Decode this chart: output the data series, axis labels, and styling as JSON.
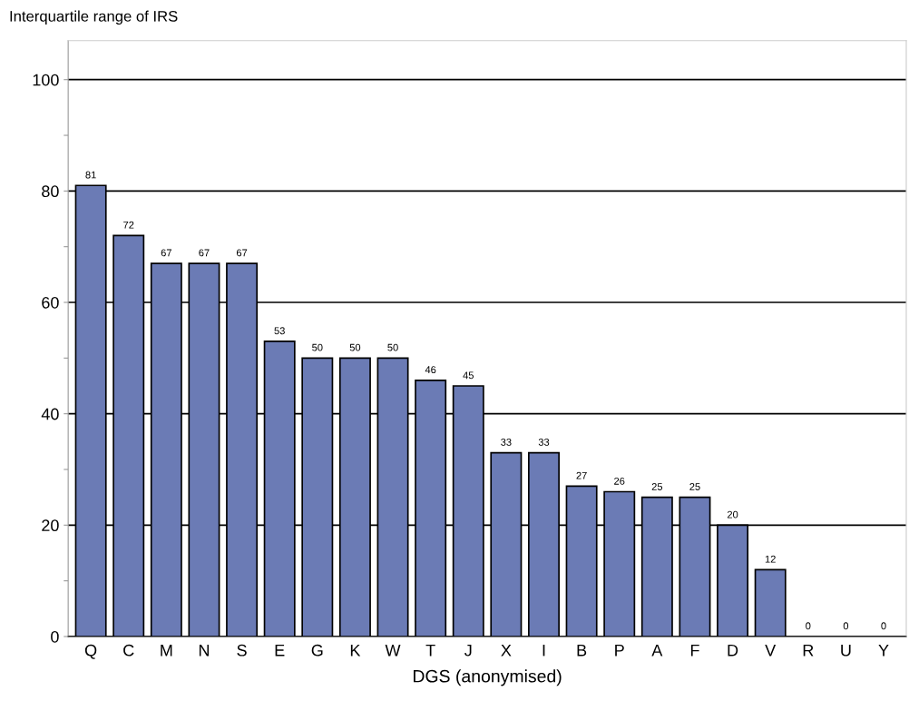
{
  "chart_data": {
    "type": "bar",
    "ylabel": "Interquartile range of IRS",
    "xlabel": "DGS (anonymised)",
    "categories": [
      "Q",
      "C",
      "M",
      "N",
      "S",
      "E",
      "G",
      "K",
      "W",
      "T",
      "J",
      "X",
      "I",
      "B",
      "P",
      "A",
      "F",
      "D",
      "V",
      "R",
      "U",
      "Y"
    ],
    "values": [
      81,
      72,
      67,
      67,
      67,
      53,
      50,
      50,
      50,
      46,
      45,
      33,
      33,
      27,
      26,
      25,
      25,
      20,
      12,
      0,
      0,
      0
    ],
    "color": "#6b7bb5",
    "data_labels": true,
    "grid": "y",
    "legend": false,
    "ylim": [
      0,
      107
    ],
    "yticks": [
      0,
      {
        "value": 10,
        "label": null
      },
      20,
      {
        "value": 30,
        "label": null
      },
      40,
      {
        "value": 50,
        "label": null
      },
      60,
      {
        "value": 70,
        "label": null
      },
      80,
      {
        "value": 90,
        "label": null
      },
      100
    ]
  }
}
